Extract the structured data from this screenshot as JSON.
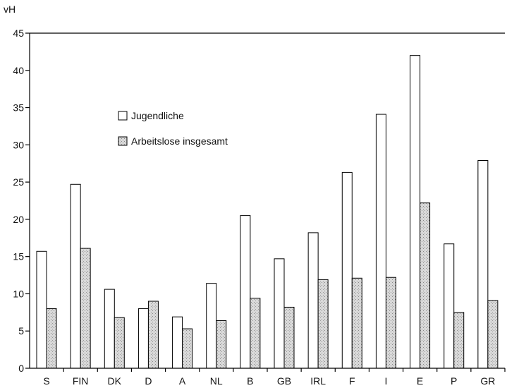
{
  "chart_data": {
    "type": "bar",
    "ylabel": "vH",
    "ylim": [
      0,
      45
    ],
    "yticks": [
      0,
      5,
      10,
      15,
      20,
      25,
      30,
      35,
      40,
      45
    ],
    "grid": false,
    "legend_position": "upper-left-inside",
    "categories": [
      "S",
      "FIN",
      "DK",
      "D",
      "A",
      "NL",
      "B",
      "GB",
      "IRL",
      "F",
      "I",
      "E",
      "P",
      "GR"
    ],
    "series": [
      {
        "name": "Jugendliche",
        "fill": "#ffffff",
        "values": [
          15.7,
          24.7,
          10.6,
          8.0,
          6.9,
          11.4,
          20.5,
          14.7,
          18.2,
          26.3,
          34.1,
          42.0,
          16.7,
          27.9
        ]
      },
      {
        "name": "Arbeitslose insgesamt",
        "fill": "#d7d7d7",
        "values": [
          8.0,
          16.1,
          6.8,
          9.0,
          5.3,
          6.4,
          9.4,
          8.2,
          11.9,
          12.1,
          12.2,
          22.2,
          7.5,
          9.1
        ]
      }
    ]
  }
}
